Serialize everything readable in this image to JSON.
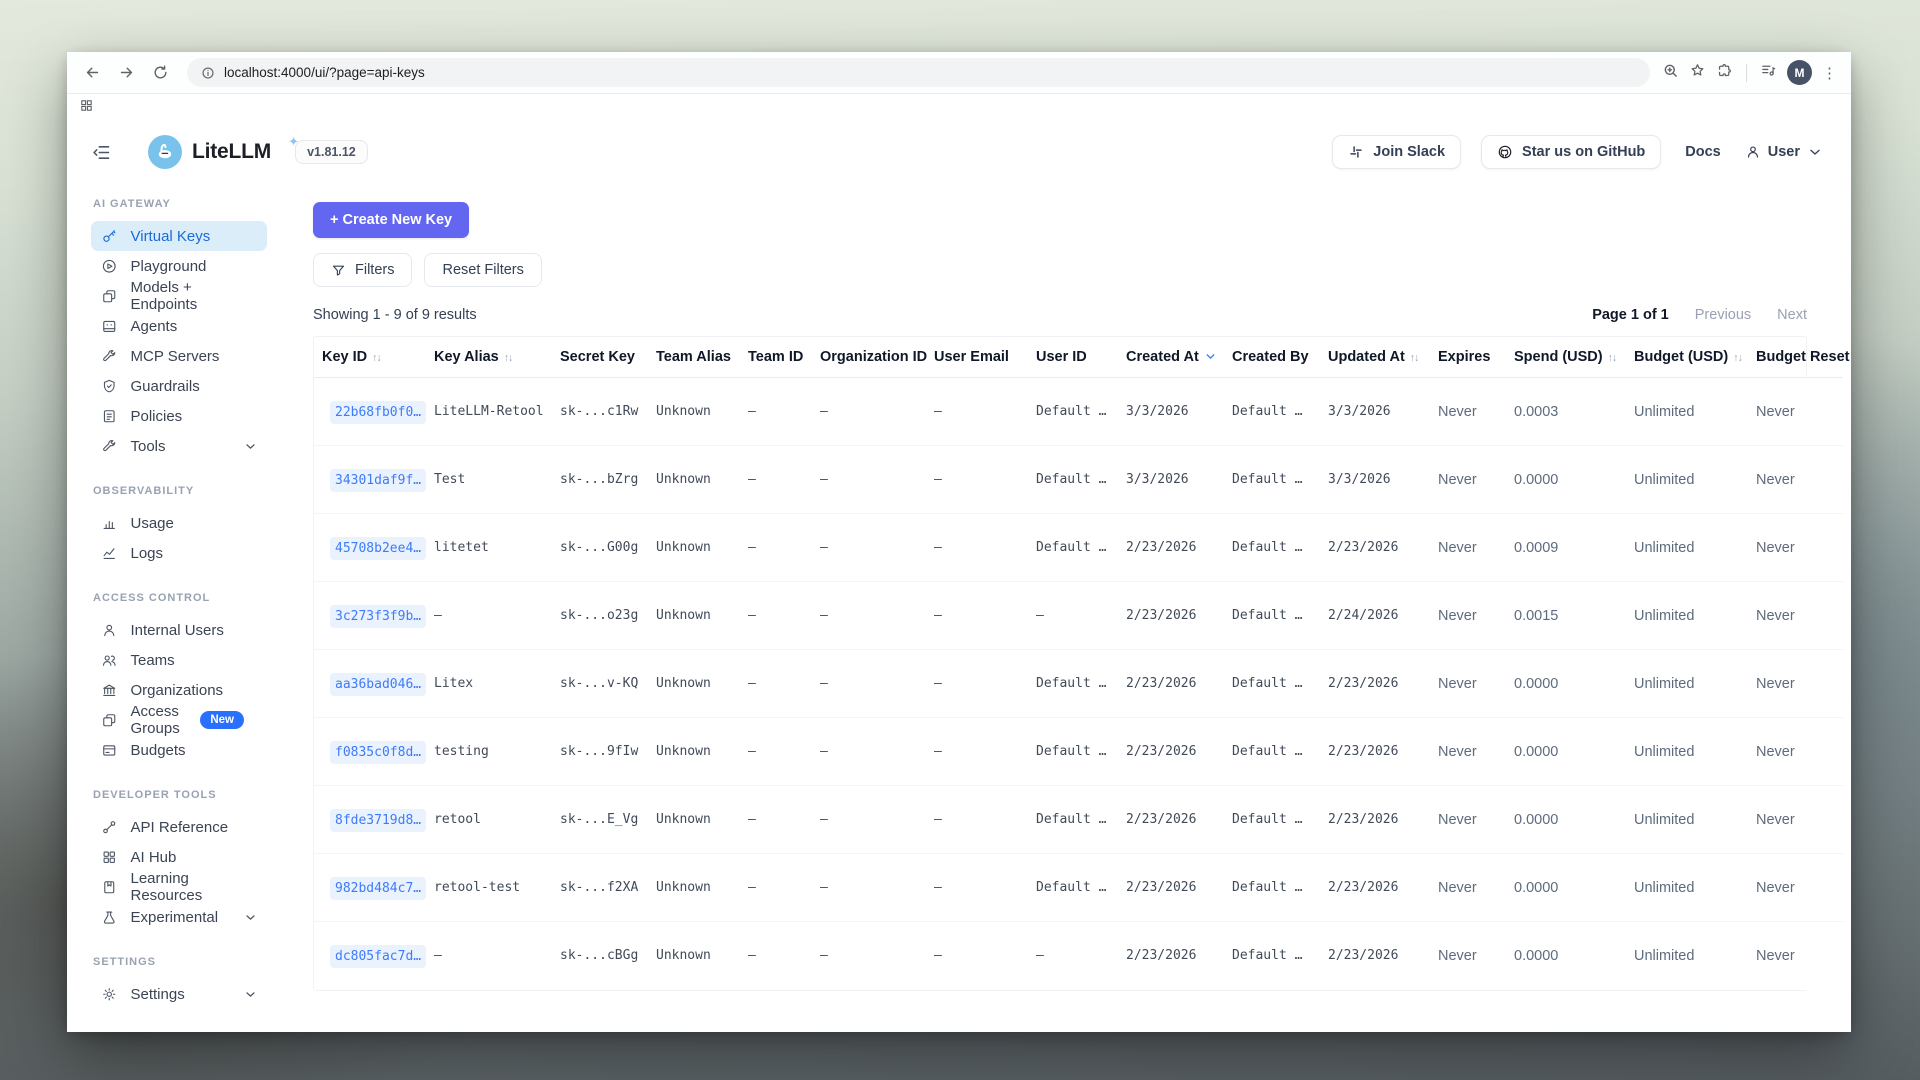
{
  "colors": {
    "accent": "#6366f1",
    "key_link": "#3e7bfa",
    "active_nav_bg": "#dcedfa",
    "active_nav_text": "#176bd9",
    "new_badge": "#2970ff"
  },
  "browser": {
    "url": "localhost:4000/ui/?page=api-keys",
    "profile_initial": "M"
  },
  "header": {
    "brand": "LiteLLM",
    "version": "v1.81.12",
    "join_slack": "Join Slack",
    "star_github": "Star us on GitHub",
    "docs": "Docs",
    "user": "User"
  },
  "sidebar": {
    "sections": [
      {
        "title": "AI GATEWAY",
        "items": [
          {
            "label": "Virtual Keys",
            "icon": "key-icon",
            "active": true
          },
          {
            "label": "Playground",
            "icon": "play-icon"
          },
          {
            "label": "Models + Endpoints",
            "icon": "models-icon"
          },
          {
            "label": "Agents",
            "icon": "agent-icon"
          },
          {
            "label": "MCP Servers",
            "icon": "wrench-icon"
          },
          {
            "label": "Guardrails",
            "icon": "shield-icon"
          },
          {
            "label": "Policies",
            "icon": "policy-icon"
          },
          {
            "label": "Tools",
            "icon": "tools-icon",
            "chevron": "chevron-down-icon"
          }
        ]
      },
      {
        "title": "OBSERVABILITY",
        "items": [
          {
            "label": "Usage",
            "icon": "bar-chart-icon"
          },
          {
            "label": "Logs",
            "icon": "line-chart-icon"
          }
        ]
      },
      {
        "title": "ACCESS CONTROL",
        "items": [
          {
            "label": "Internal Users",
            "icon": "user-icon"
          },
          {
            "label": "Teams",
            "icon": "users-icon"
          },
          {
            "label": "Organizations",
            "icon": "bank-icon"
          },
          {
            "label": "Access Groups",
            "icon": "groups-icon",
            "badge": "New"
          },
          {
            "label": "Budgets",
            "icon": "wallet-icon"
          }
        ]
      },
      {
        "title": "DEVELOPER TOOLS",
        "items": [
          {
            "label": "API Reference",
            "icon": "link-icon"
          },
          {
            "label": "AI Hub",
            "icon": "grid-icon"
          },
          {
            "label": "Learning Resources",
            "icon": "book-icon"
          },
          {
            "label": "Experimental",
            "icon": "flask-icon",
            "chevron": "chevron-down-icon"
          }
        ]
      },
      {
        "title": "SETTINGS",
        "items": [
          {
            "label": "Settings",
            "icon": "gear-icon",
            "chevron": "chevron-down-icon"
          }
        ]
      }
    ]
  },
  "toolbar": {
    "create_key": "+ Create New Key",
    "filters": "Filters",
    "reset_filters": "Reset Filters",
    "results_summary": "Showing 1 - 9 of 9 results"
  },
  "pagination": {
    "page_info": "Page 1 of 1",
    "previous": "Previous",
    "next": "Next"
  },
  "table": {
    "columns": [
      {
        "label": "Key ID",
        "sort_icon": "sort-updown-icon"
      },
      {
        "label": "Key Alias",
        "sort_icon": "sort-updown-icon"
      },
      {
        "label": "Secret Key"
      },
      {
        "label": "Team Alias"
      },
      {
        "label": "Team ID"
      },
      {
        "label": "Organization ID"
      },
      {
        "label": "User Email"
      },
      {
        "label": "User ID"
      },
      {
        "label": "Created At",
        "sort_icon": "sort-down-icon"
      },
      {
        "label": "Created By"
      },
      {
        "label": "Updated At",
        "sort_icon": "sort-updown-icon"
      },
      {
        "label": "Expires"
      },
      {
        "label": "Spend (USD)",
        "sort_icon": "sort-updown-icon"
      },
      {
        "label": "Budget (USD)",
        "sort_icon": "sort-updown-icon"
      },
      {
        "label": "Budget Reset"
      }
    ],
    "rows": [
      {
        "key_id": "22b68fb0f0…",
        "key_alias": "LiteLLM-Retool",
        "secret_key": "sk-...c1Rw",
        "team_alias": "Unknown",
        "team_id": "–",
        "org_id": "–",
        "user_email": "–",
        "user_id": "Default …",
        "created_at": "3/3/2026",
        "created_by": "Default …",
        "updated_at": "3/3/2026",
        "expires": "Never",
        "spend": "0.0003",
        "budget": "Unlimited",
        "budget_reset": "Never"
      },
      {
        "key_id": "34301daf9f…",
        "key_alias": "Test",
        "secret_key": "sk-...bZrg",
        "team_alias": "Unknown",
        "team_id": "–",
        "org_id": "–",
        "user_email": "–",
        "user_id": "Default …",
        "created_at": "3/3/2026",
        "created_by": "Default …",
        "updated_at": "3/3/2026",
        "expires": "Never",
        "spend": "0.0000",
        "budget": "Unlimited",
        "budget_reset": "Never"
      },
      {
        "key_id": "45708b2ee4…",
        "key_alias": "litetet",
        "secret_key": "sk-...G00g",
        "team_alias": "Unknown",
        "team_id": "–",
        "org_id": "–",
        "user_email": "–",
        "user_id": "Default …",
        "created_at": "2/23/2026",
        "created_by": "Default …",
        "updated_at": "2/23/2026",
        "expires": "Never",
        "spend": "0.0009",
        "budget": "Unlimited",
        "budget_reset": "Never"
      },
      {
        "key_id": "3c273f3f9b…",
        "key_alias": "–",
        "secret_key": "sk-...o23g",
        "team_alias": "Unknown",
        "team_id": "–",
        "org_id": "–",
        "user_email": "–",
        "user_id": "–",
        "created_at": "2/23/2026",
        "created_by": "Default …",
        "updated_at": "2/24/2026",
        "expires": "Never",
        "spend": "0.0015",
        "budget": "Unlimited",
        "budget_reset": "Never"
      },
      {
        "key_id": "aa36bad046…",
        "key_alias": "Litex",
        "secret_key": "sk-...v-KQ",
        "team_alias": "Unknown",
        "team_id": "–",
        "org_id": "–",
        "user_email": "–",
        "user_id": "Default …",
        "created_at": "2/23/2026",
        "created_by": "Default …",
        "updated_at": "2/23/2026",
        "expires": "Never",
        "spend": "0.0000",
        "budget": "Unlimited",
        "budget_reset": "Never"
      },
      {
        "key_id": "f0835c0f8d…",
        "key_alias": "testing",
        "secret_key": "sk-...9fIw",
        "team_alias": "Unknown",
        "team_id": "–",
        "org_id": "–",
        "user_email": "–",
        "user_id": "Default …",
        "created_at": "2/23/2026",
        "created_by": "Default …",
        "updated_at": "2/23/2026",
        "expires": "Never",
        "spend": "0.0000",
        "budget": "Unlimited",
        "budget_reset": "Never"
      },
      {
        "key_id": "8fde3719d8…",
        "key_alias": "retool",
        "secret_key": "sk-...E_Vg",
        "team_alias": "Unknown",
        "team_id": "–",
        "org_id": "–",
        "user_email": "–",
        "user_id": "Default …",
        "created_at": "2/23/2026",
        "created_by": "Default …",
        "updated_at": "2/23/2026",
        "expires": "Never",
        "spend": "0.0000",
        "budget": "Unlimited",
        "budget_reset": "Never"
      },
      {
        "key_id": "982bd484c7…",
        "key_alias": "retool-test",
        "secret_key": "sk-...f2XA",
        "team_alias": "Unknown",
        "team_id": "–",
        "org_id": "–",
        "user_email": "–",
        "user_id": "Default …",
        "created_at": "2/23/2026",
        "created_by": "Default …",
        "updated_at": "2/23/2026",
        "expires": "Never",
        "spend": "0.0000",
        "budget": "Unlimited",
        "budget_reset": "Never"
      },
      {
        "key_id": "dc805fac7d…",
        "key_alias": "–",
        "secret_key": "sk-...cBGg",
        "team_alias": "Unknown",
        "team_id": "–",
        "org_id": "–",
        "user_email": "–",
        "user_id": "–",
        "created_at": "2/23/2026",
        "created_by": "Default …",
        "updated_at": "2/23/2026",
        "expires": "Never",
        "spend": "0.0000",
        "budget": "Unlimited",
        "budget_reset": "Never"
      }
    ]
  }
}
